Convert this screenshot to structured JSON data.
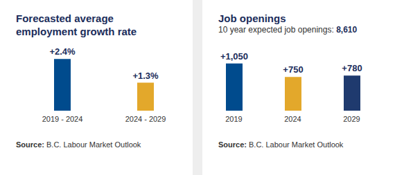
{
  "chart_data": [
    {
      "type": "bar",
      "title": "Forecasted average employment growth rate",
      "categories": [
        "2019 - 2024",
        "2024 - 2029"
      ],
      "values": [
        2.4,
        1.3
      ],
      "value_labels": [
        "+2.4%",
        "+1.3%"
      ],
      "colors": [
        "#004b8d",
        "#e3a82b"
      ],
      "data_labels": true,
      "tick_labels": "x",
      "grid": false,
      "source_label": "Source:",
      "source": "B.C. Labour Market Outlook"
    },
    {
      "type": "bar",
      "title": "Job openings",
      "subtitle": "10 year expected job openings:",
      "subtitle_value": "8,610",
      "categories": [
        "2019",
        "2024",
        "2029"
      ],
      "values": [
        1050,
        750,
        780
      ],
      "value_labels": [
        "+1,050",
        "+750",
        "+780"
      ],
      "colors": [
        "#004b8d",
        "#e3a82b",
        "#1f3a6e"
      ],
      "data_labels": true,
      "tick_labels": "x",
      "grid": false,
      "source_label": "Source:",
      "source": "B.C. Labour Market Outlook"
    }
  ]
}
